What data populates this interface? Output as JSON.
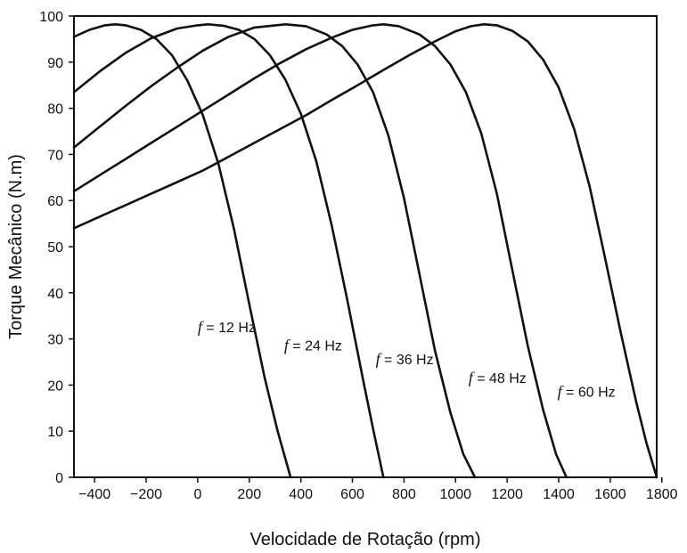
{
  "chart_data": {
    "type": "line",
    "title": "",
    "xlabel": "Velocidade de Rotação (rpm)",
    "ylabel": "Torque Mecânico (N.m)",
    "xlim": [
      -480,
      1780
    ],
    "ylim": [
      0,
      100
    ],
    "x_ticks": [
      -400,
      -200,
      0,
      200,
      400,
      600,
      800,
      1000,
      1200,
      1400,
      1600,
      1800
    ],
    "x_tick_labels": [
      "−400",
      "−200",
      "0",
      "200",
      "400",
      "600",
      "800",
      "1000",
      "1200",
      "1400",
      "1600",
      "1800"
    ],
    "y_ticks": [
      0,
      10,
      20,
      30,
      40,
      50,
      60,
      70,
      80,
      90,
      100
    ],
    "y_tick_labels": [
      "0",
      "10",
      "20",
      "30",
      "40",
      "50",
      "60",
      "70",
      "80",
      "90",
      "100"
    ],
    "grid": false,
    "legend": "none",
    "line_color": "#111111",
    "series": [
      {
        "label": "f = 12 Hz",
        "points": [
          [
            -480,
            95.5
          ],
          [
            -420,
            97.0
          ],
          [
            -360,
            98.0
          ],
          [
            -320,
            98.2
          ],
          [
            -280,
            98.0
          ],
          [
            -220,
            97.0
          ],
          [
            -160,
            95.0
          ],
          [
            -100,
            91.5
          ],
          [
            -40,
            86.0
          ],
          [
            20,
            78.5
          ],
          [
            80,
            68.0
          ],
          [
            140,
            54.0
          ],
          [
            200,
            37.5
          ],
          [
            260,
            21.5
          ],
          [
            310,
            10.0
          ],
          [
            360,
            0.0
          ]
        ]
      },
      {
        "label": "f = 24 Hz",
        "points": [
          [
            -480,
            83.5
          ],
          [
            -380,
            88.0
          ],
          [
            -280,
            92.0
          ],
          [
            -180,
            95.2
          ],
          [
            -80,
            97.3
          ],
          [
            0,
            98.0
          ],
          [
            40,
            98.2
          ],
          [
            100,
            97.9
          ],
          [
            160,
            97.0
          ],
          [
            220,
            95.0
          ],
          [
            280,
            91.5
          ],
          [
            340,
            86.2
          ],
          [
            400,
            78.8
          ],
          [
            460,
            68.5
          ],
          [
            520,
            54.5
          ],
          [
            580,
            38.5
          ],
          [
            640,
            21.5
          ],
          [
            680,
            10.5
          ],
          [
            720,
            0.0
          ]
        ]
      },
      {
        "label": "f = 36 Hz",
        "points": [
          [
            -480,
            71.5
          ],
          [
            -380,
            76.0
          ],
          [
            -280,
            80.5
          ],
          [
            -180,
            84.8
          ],
          [
            -80,
            88.8
          ],
          [
            20,
            92.5
          ],
          [
            120,
            95.5
          ],
          [
            220,
            97.5
          ],
          [
            340,
            98.2
          ],
          [
            420,
            97.8
          ],
          [
            500,
            96.0
          ],
          [
            560,
            93.5
          ],
          [
            620,
            89.5
          ],
          [
            680,
            83.5
          ],
          [
            740,
            74.0
          ],
          [
            800,
            60.5
          ],
          [
            860,
            44.0
          ],
          [
            920,
            27.5
          ],
          [
            980,
            14.0
          ],
          [
            1030,
            5.0
          ],
          [
            1075,
            0.0
          ]
        ]
      },
      {
        "label": "f = 48 Hz",
        "points": [
          [
            -480,
            62.0
          ],
          [
            -380,
            65.5
          ],
          [
            -280,
            69.0
          ],
          [
            -180,
            72.5
          ],
          [
            -80,
            76.0
          ],
          [
            20,
            79.5
          ],
          [
            120,
            83.0
          ],
          [
            220,
            86.5
          ],
          [
            320,
            89.8
          ],
          [
            420,
            92.8
          ],
          [
            520,
            95.3
          ],
          [
            600,
            97.0
          ],
          [
            680,
            98.0
          ],
          [
            720,
            98.2
          ],
          [
            780,
            97.8
          ],
          [
            860,
            96.0
          ],
          [
            920,
            93.5
          ],
          [
            980,
            89.5
          ],
          [
            1040,
            83.5
          ],
          [
            1100,
            74.5
          ],
          [
            1160,
            61.5
          ],
          [
            1220,
            45.0
          ],
          [
            1280,
            28.5
          ],
          [
            1340,
            14.5
          ],
          [
            1390,
            5.0
          ],
          [
            1430,
            0.0
          ]
        ]
      },
      {
        "label": "f = 60 Hz",
        "points": [
          [
            -480,
            54.0
          ],
          [
            -380,
            56.5
          ],
          [
            -280,
            59.0
          ],
          [
            -180,
            61.5
          ],
          [
            -80,
            64.0
          ],
          [
            20,
            66.5
          ],
          [
            120,
            69.5
          ],
          [
            220,
            72.5
          ],
          [
            320,
            75.5
          ],
          [
            420,
            78.5
          ],
          [
            520,
            81.8
          ],
          [
            620,
            85.0
          ],
          [
            720,
            88.3
          ],
          [
            820,
            91.5
          ],
          [
            920,
            94.5
          ],
          [
            1000,
            96.7
          ],
          [
            1060,
            97.8
          ],
          [
            1110,
            98.2
          ],
          [
            1160,
            98.0
          ],
          [
            1220,
            96.8
          ],
          [
            1280,
            94.5
          ],
          [
            1340,
            90.5
          ],
          [
            1400,
            84.5
          ],
          [
            1460,
            75.5
          ],
          [
            1520,
            63.0
          ],
          [
            1580,
            47.5
          ],
          [
            1640,
            31.5
          ],
          [
            1700,
            16.5
          ],
          [
            1740,
            7.5
          ],
          [
            1780,
            0.0
          ]
        ]
      }
    ],
    "annotations": [
      {
        "prefix": "f",
        "text": " = 12 Hz",
        "x": 0,
        "y": 31.5
      },
      {
        "prefix": "f",
        "text": " = 24 Hz",
        "x": 335,
        "y": 27.5
      },
      {
        "prefix": "f",
        "text": " = 36 Hz",
        "x": 690,
        "y": 24.5
      },
      {
        "prefix": "f",
        "text": " = 48 Hz",
        "x": 1050,
        "y": 20.5
      },
      {
        "prefix": "f",
        "text": " = 60 Hz",
        "x": 1395,
        "y": 17.5
      }
    ]
  }
}
